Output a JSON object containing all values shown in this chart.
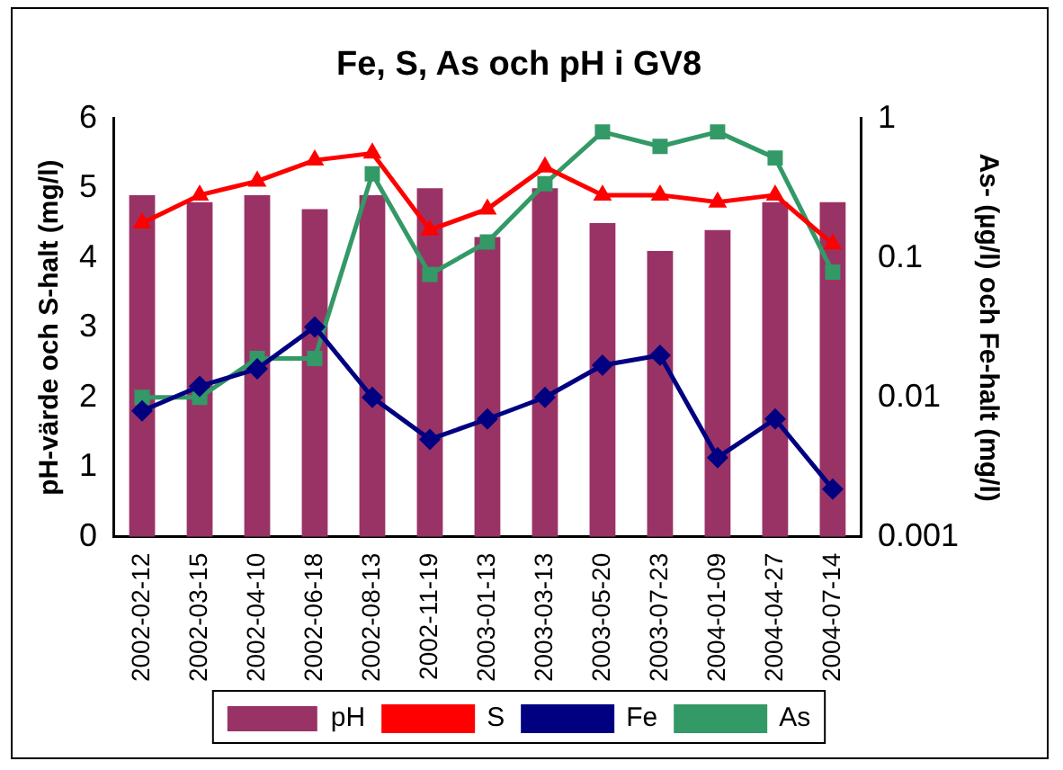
{
  "chart_data": {
    "type": "bar",
    "title": "Fe, S, As och pH i GV8",
    "ylabel": "pH-värde och S-halt (mg/l)",
    "y2label": "As- (µg/l) och Fe-halt (mg/l)",
    "categories": [
      "2002-02-12",
      "2002-03-15",
      "2002-04-10",
      "2002-06-18",
      "2002-08-13",
      "2002-11-19",
      "2003-01-13",
      "2003-03-13",
      "2003-05-20",
      "2003-07-23",
      "2004-01-09",
      "2004-04-27",
      "2004-07-14"
    ],
    "series": [
      {
        "name": "pH",
        "color": "#993366",
        "values": [
          4.9,
          4.8,
          4.9,
          4.7,
          4.9,
          5.0,
          4.3,
          5.0,
          4.5,
          4.1,
          4.4,
          4.8,
          4.8
        ]
      },
      {
        "name": "S",
        "type": "line",
        "color": "#ff0000",
        "marker": "triangle",
        "values": [
          4.5,
          4.9,
          5.1,
          5.4,
          5.5,
          4.4,
          4.7,
          5.3,
          4.9,
          4.9,
          4.8,
          4.9,
          4.2
        ]
      },
      {
        "name": "Fe",
        "type": "line",
        "color": "#000080",
        "marker": "diamond",
        "axis": "y2",
        "values": [
          0.008,
          0.012,
          0.016,
          0.032,
          0.01,
          0.005,
          0.007,
          0.01,
          0.017,
          0.02,
          0.0037,
          0.007,
          0.0022
        ]
      },
      {
        "name": "As",
        "type": "line",
        "color": "#339966",
        "marker": "square",
        "axis": "y2",
        "values": [
          0.01,
          0.01,
          0.019,
          0.019,
          0.4,
          0.076,
          0.13,
          0.34,
          0.8,
          0.63,
          0.8,
          0.52,
          0.079
        ]
      }
    ],
    "ylim": [
      0,
      6
    ],
    "yticks": [
      0,
      1,
      2,
      3,
      4,
      5,
      6
    ],
    "y2lim": [
      0.001,
      1
    ],
    "y2ticks": [
      0.001,
      0.01,
      0.1,
      1
    ],
    "log": "y2",
    "legend": "bottom"
  }
}
